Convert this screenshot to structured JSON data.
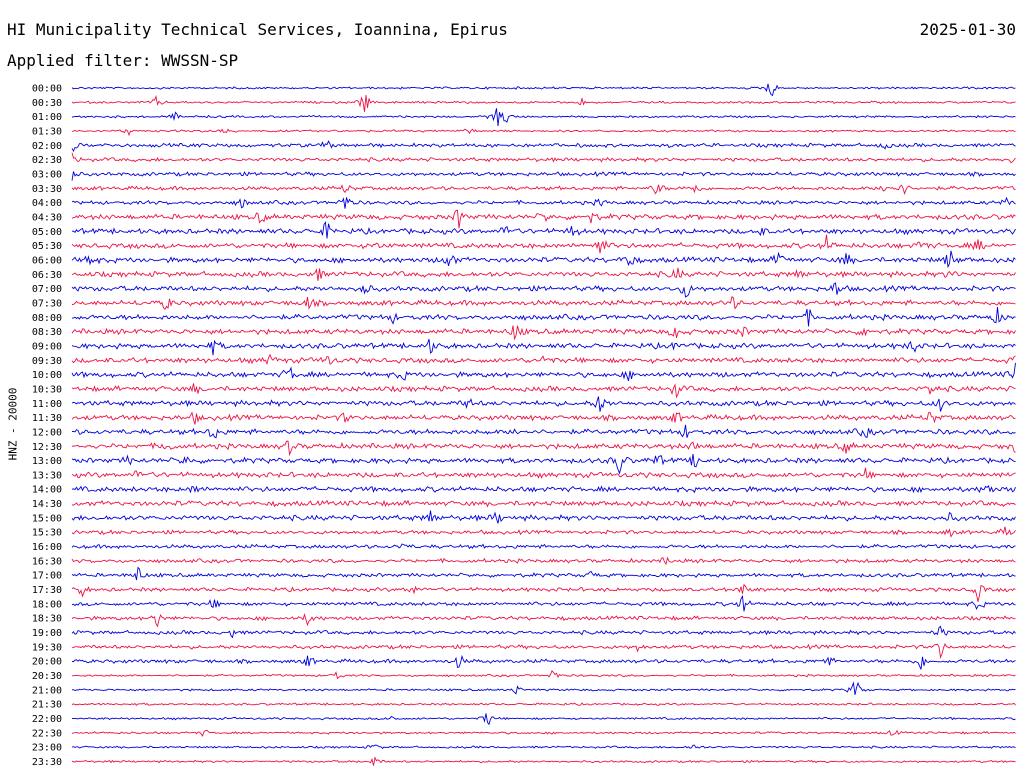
{
  "header": {
    "title": "HI Municipality Technical Services, Ioannina, Epirus",
    "date": "2025-01-30",
    "filter": "Applied filter: WWSSN-SP"
  },
  "colors": {
    "even_rows": "#0000dd",
    "odd_rows": "#ee1144",
    "text": "#000000",
    "background": "#ffffff"
  },
  "chart_data": {
    "type": "line",
    "title": "HI Municipality Technical Services, Ioannina, Epirus",
    "subtitle": "Applied filter: WWSSN-SP",
    "ylabel": "HNZ - 20000",
    "xlabel": "",
    "grid": false,
    "legend": "none",
    "row_interval_minutes": 30,
    "rows": [
      {
        "label": "00:00",
        "events": [
          [
            0.74,
            1.0
          ]
        ]
      },
      {
        "label": "00:30",
        "events": [
          [
            0.09,
            0.5
          ],
          [
            0.31,
            1.0
          ],
          [
            0.41,
            0.3
          ],
          [
            0.54,
            0.3
          ]
        ]
      },
      {
        "label": "01:00",
        "events": [
          [
            0.11,
            0.3
          ],
          [
            0.45,
            0.9
          ],
          [
            0.46,
            0.5
          ]
        ]
      },
      {
        "label": "01:30",
        "events": [
          [
            0.06,
            0.3
          ],
          [
            0.16,
            0.25
          ],
          [
            0.42,
            0.3
          ]
        ]
      },
      {
        "label": "02:00",
        "events": [
          [
            0.0,
            0.6
          ],
          [
            0.27,
            0.3
          ],
          [
            0.86,
            0.3
          ]
        ]
      },
      {
        "label": "02:30",
        "events": [
          [
            0.0,
            0.5
          ],
          [
            1.0,
            0.6
          ]
        ]
      },
      {
        "label": "03:00",
        "events": [
          [
            0.0,
            0.6
          ]
        ]
      },
      {
        "label": "03:30",
        "events": [
          [
            0.29,
            0.4
          ],
          [
            0.62,
            0.6
          ],
          [
            0.66,
            0.5
          ],
          [
            0.86,
            0.4
          ],
          [
            0.88,
            0.6
          ]
        ]
      },
      {
        "label": "04:00",
        "events": [
          [
            0.18,
            0.4
          ],
          [
            0.29,
            0.8
          ],
          [
            0.56,
            0.3
          ],
          [
            0.99,
            0.3
          ]
        ]
      },
      {
        "label": "04:30",
        "events": [
          [
            0.2,
            0.5
          ],
          [
            0.41,
            0.9
          ],
          [
            0.5,
            0.4
          ],
          [
            0.55,
            0.4
          ]
        ]
      },
      {
        "label": "05:00",
        "events": [
          [
            0.27,
            0.8
          ],
          [
            0.46,
            0.6
          ],
          [
            0.53,
            0.5
          ],
          [
            0.73,
            0.3
          ]
        ]
      },
      {
        "label": "05:30",
        "events": [
          [
            0.32,
            0.4
          ],
          [
            0.56,
            0.9
          ],
          [
            0.8,
            0.8
          ],
          [
            0.9,
            0.5
          ],
          [
            0.96,
            0.5
          ]
        ]
      },
      {
        "label": "06:00",
        "events": [
          [
            0.02,
            0.6
          ],
          [
            0.4,
            0.9
          ],
          [
            0.59,
            0.8
          ],
          [
            0.75,
            0.7
          ],
          [
            0.82,
            0.6
          ],
          [
            0.93,
            0.9
          ]
        ]
      },
      {
        "label": "06:30",
        "events": [
          [
            0.26,
            0.6
          ],
          [
            0.64,
            0.6
          ],
          [
            0.77,
            0.4
          ],
          [
            0.93,
            0.3
          ]
        ]
      },
      {
        "label": "07:00",
        "events": [
          [
            0.31,
            0.6
          ],
          [
            0.65,
            0.8
          ],
          [
            0.81,
            0.7
          ]
        ]
      },
      {
        "label": "07:30",
        "events": [
          [
            0.1,
            0.6
          ],
          [
            0.25,
            0.5
          ],
          [
            0.7,
            0.5
          ]
        ]
      },
      {
        "label": "08:00",
        "events": [
          [
            0.34,
            0.3
          ],
          [
            0.78,
            0.6
          ],
          [
            0.98,
            0.6
          ]
        ]
      },
      {
        "label": "08:30",
        "events": [
          [
            0.47,
            0.9
          ],
          [
            0.64,
            0.6
          ],
          [
            0.71,
            0.4
          ],
          [
            0.84,
            0.4
          ]
        ]
      },
      {
        "label": "09:00",
        "events": [
          [
            0.15,
            0.6
          ],
          [
            0.38,
            0.6
          ],
          [
            0.64,
            0.3
          ],
          [
            0.89,
            0.6
          ]
        ]
      },
      {
        "label": "09:30",
        "events": [
          [
            0.21,
            0.4
          ],
          [
            0.27,
            0.5
          ],
          [
            0.5,
            0.4
          ],
          [
            1.0,
            0.5
          ]
        ]
      },
      {
        "label": "10:00",
        "events": [
          [
            0.23,
            0.8
          ],
          [
            0.35,
            0.4
          ],
          [
            0.59,
            0.3
          ],
          [
            1.0,
            0.9
          ]
        ]
      },
      {
        "label": "10:30",
        "events": [
          [
            0.13,
            0.4
          ],
          [
            0.64,
            0.6
          ],
          [
            0.91,
            0.5
          ]
        ]
      },
      {
        "label": "11:00",
        "events": [
          [
            0.42,
            0.4
          ],
          [
            0.56,
            0.9
          ],
          [
            0.92,
            0.5
          ]
        ]
      },
      {
        "label": "11:30",
        "events": [
          [
            0.13,
            0.4
          ],
          [
            0.29,
            0.4
          ],
          [
            0.64,
            0.5
          ],
          [
            0.91,
            0.6
          ]
        ]
      },
      {
        "label": "12:00",
        "events": [
          [
            0.15,
            0.8
          ],
          [
            0.47,
            0.3
          ],
          [
            0.65,
            0.5
          ],
          [
            0.84,
            0.5
          ]
        ]
      },
      {
        "label": "12:30",
        "events": [
          [
            0.1,
            0.6
          ],
          [
            0.23,
            0.6
          ],
          [
            0.66,
            0.4
          ],
          [
            0.82,
            0.5
          ],
          [
            1.0,
            0.5
          ]
        ]
      },
      {
        "label": "13:00",
        "events": [
          [
            0.06,
            0.3
          ],
          [
            0.12,
            0.4
          ],
          [
            0.58,
            1.0
          ],
          [
            0.62,
            0.6
          ],
          [
            0.66,
            0.6
          ]
        ]
      },
      {
        "label": "13:30",
        "events": [
          [
            0.07,
            0.4
          ],
          [
            0.84,
            0.4
          ]
        ]
      },
      {
        "label": "14:00",
        "events": [
          [
            0.13,
            0.4
          ],
          [
            0.97,
            0.5
          ]
        ]
      },
      {
        "label": "14:30",
        "events": []
      },
      {
        "label": "15:00",
        "events": [
          [
            0.38,
            0.6
          ],
          [
            0.45,
            0.5
          ],
          [
            0.93,
            0.3
          ]
        ]
      },
      {
        "label": "15:30",
        "events": [
          [
            0.99,
            0.5
          ],
          [
            0.93,
            0.3
          ]
        ]
      },
      {
        "label": "16:00",
        "events": [
          [
            0.35,
            0.3
          ]
        ]
      },
      {
        "label": "16:30",
        "events": [
          [
            0.63,
            0.3
          ]
        ]
      },
      {
        "label": "17:00",
        "events": [
          [
            0.07,
            0.7
          ],
          [
            0.55,
            0.3
          ]
        ]
      },
      {
        "label": "17:30",
        "events": [
          [
            0.01,
            0.6
          ],
          [
            0.36,
            0.5
          ],
          [
            0.71,
            0.6
          ],
          [
            0.96,
            0.8
          ]
        ]
      },
      {
        "label": "18:00",
        "events": [
          [
            0.15,
            0.4
          ],
          [
            0.71,
            0.8
          ],
          [
            0.96,
            0.5
          ]
        ]
      },
      {
        "label": "18:30",
        "events": [
          [
            0.09,
            0.7
          ],
          [
            0.25,
            0.5
          ]
        ]
      },
      {
        "label": "19:00",
        "events": [
          [
            0.17,
            0.3
          ],
          [
            0.92,
            0.5
          ]
        ]
      },
      {
        "label": "19:30",
        "events": [
          [
            0.92,
            0.8
          ],
          [
            0.6,
            0.3
          ]
        ]
      },
      {
        "label": "20:00",
        "events": [
          [
            0.25,
            0.5
          ],
          [
            0.41,
            0.6
          ],
          [
            0.8,
            0.5
          ],
          [
            0.9,
            0.7
          ]
        ]
      },
      {
        "label": "20:30",
        "events": [
          [
            0.28,
            0.4
          ],
          [
            0.51,
            0.6
          ]
        ]
      },
      {
        "label": "21:00",
        "events": [
          [
            0.47,
            0.4
          ],
          [
            0.83,
            1.0
          ]
        ]
      },
      {
        "label": "21:30",
        "events": []
      },
      {
        "label": "22:00",
        "events": [
          [
            0.44,
            0.7
          ],
          [
            0.34,
            0.3
          ]
        ]
      },
      {
        "label": "22:30",
        "events": [
          [
            0.14,
            0.3
          ],
          [
            0.87,
            0.3
          ]
        ]
      },
      {
        "label": "23:00",
        "events": [
          [
            0.32,
            0.3
          ],
          [
            0.66,
            0.3
          ]
        ]
      },
      {
        "label": "23:30",
        "events": [
          [
            0.32,
            0.5
          ]
        ]
      }
    ]
  }
}
